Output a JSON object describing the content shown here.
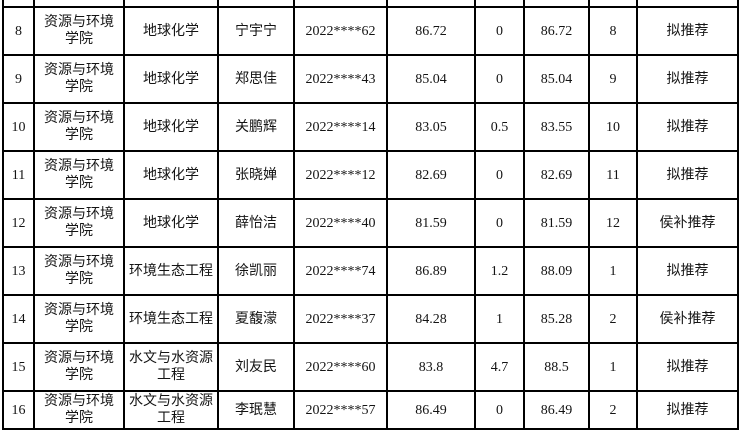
{
  "colors": {
    "background": "#ffffff",
    "border": "#000000",
    "text": "#141414"
  },
  "table": {
    "rows": [
      {
        "index": "8",
        "college": "资源与环境\n学院",
        "major": "地球化学",
        "name": "宁宇宁",
        "student_id": "2022****62",
        "score": "86.72",
        "bonus": "0",
        "total": "86.72",
        "rank": "8",
        "status": "拟推荐"
      },
      {
        "index": "9",
        "college": "资源与环境\n学院",
        "major": "地球化学",
        "name": "郑思佳",
        "student_id": "2022****43",
        "score": "85.04",
        "bonus": "0",
        "total": "85.04",
        "rank": "9",
        "status": "拟推荐"
      },
      {
        "index": "10",
        "college": "资源与环境\n学院",
        "major": "地球化学",
        "name": "关鹏辉",
        "student_id": "2022****14",
        "score": "83.05",
        "bonus": "0.5",
        "total": "83.55",
        "rank": "10",
        "status": "拟推荐"
      },
      {
        "index": "11",
        "college": "资源与环境\n学院",
        "major": "地球化学",
        "name": "张晓婵",
        "student_id": "2022****12",
        "score": "82.69",
        "bonus": "0",
        "total": "82.69",
        "rank": "11",
        "status": "拟推荐"
      },
      {
        "index": "12",
        "college": "资源与环境\n学院",
        "major": "地球化学",
        "name": "薛怡洁",
        "student_id": "2022****40",
        "score": "81.59",
        "bonus": "0",
        "total": "81.59",
        "rank": "12",
        "status": "侯补推荐"
      },
      {
        "index": "13",
        "college": "资源与环境\n学院",
        "major": "环境生态工程",
        "name": "徐凯丽",
        "student_id": "2022****74",
        "score": "86.89",
        "bonus": "1.2",
        "total": "88.09",
        "rank": "1",
        "status": "拟推荐"
      },
      {
        "index": "14",
        "college": "资源与环境\n学院",
        "major": "环境生态工程",
        "name": "夏馥濛",
        "student_id": "2022****37",
        "score": "84.28",
        "bonus": "1",
        "total": "85.28",
        "rank": "2",
        "status": "侯补推荐"
      },
      {
        "index": "15",
        "college": "资源与环境\n学院",
        "major": "水文与水资源\n工程",
        "name": "刘友民",
        "student_id": "2022****60",
        "score": "83.8",
        "bonus": "4.7",
        "total": "88.5",
        "rank": "1",
        "status": "拟推荐"
      },
      {
        "index": "16",
        "college": "资源与环境\n学院",
        "major": "水文与水资源\n工程",
        "name": "李珉慧",
        "student_id": "2022****57",
        "score": "86.49",
        "bonus": "0",
        "total": "86.49",
        "rank": "2",
        "status": "拟推荐"
      }
    ]
  }
}
